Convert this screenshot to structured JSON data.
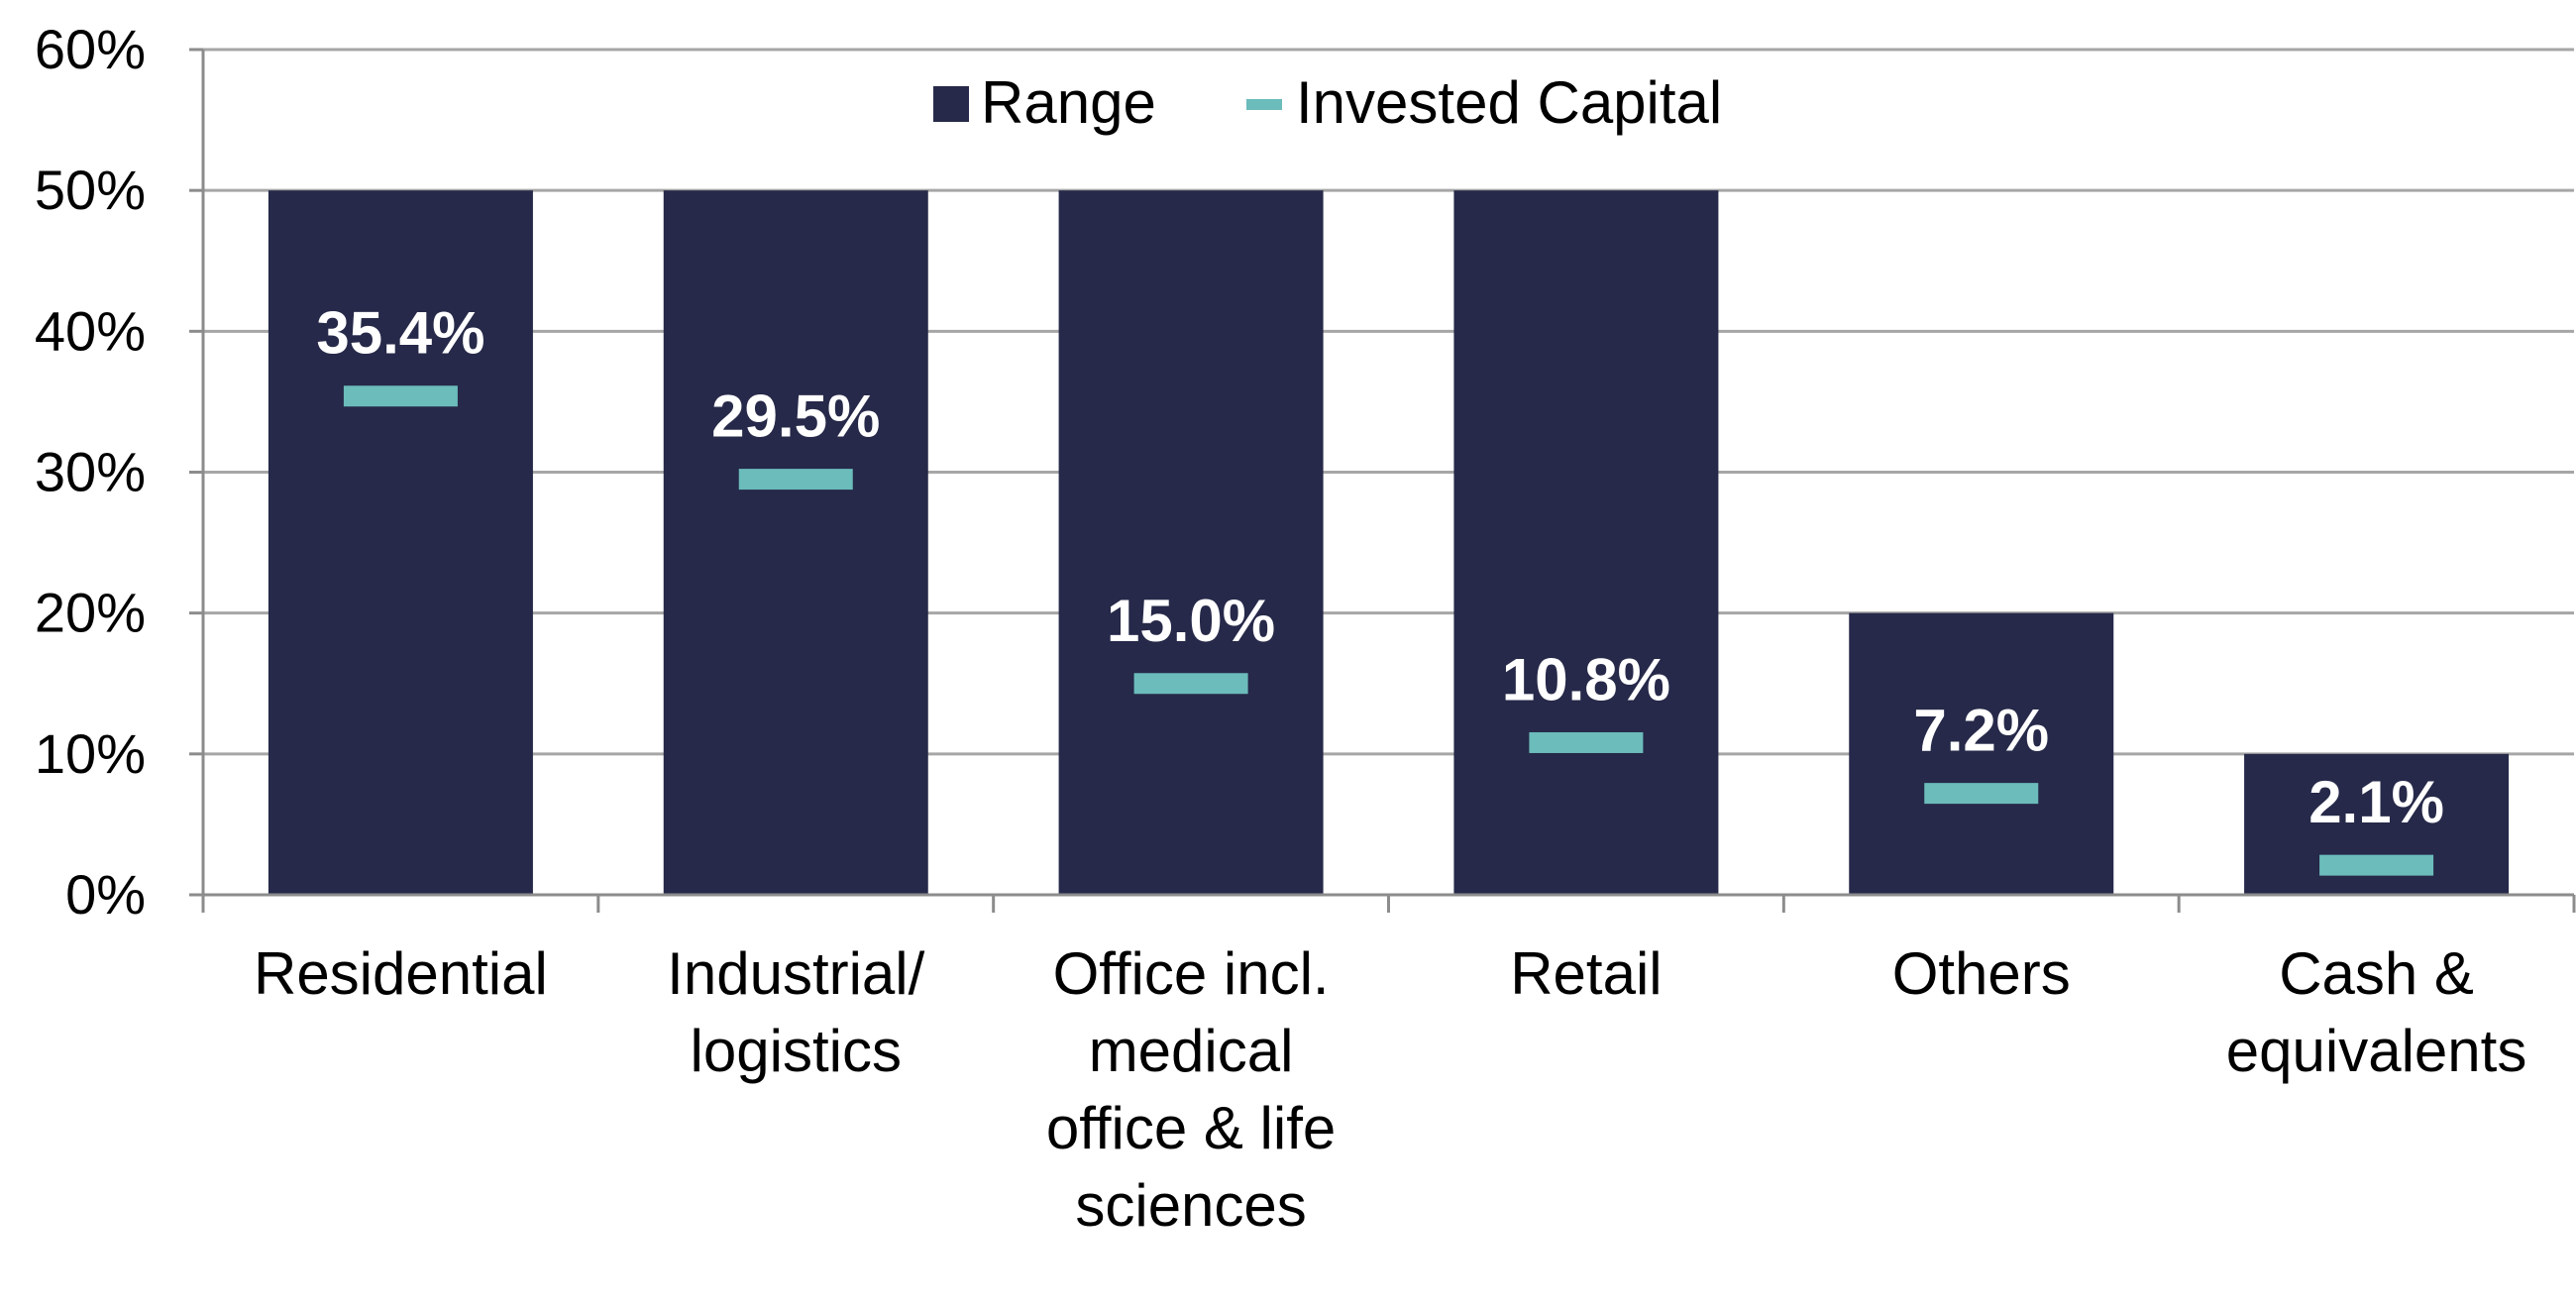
{
  "chart_data": {
    "type": "bar",
    "categories": [
      [
        "Residential"
      ],
      [
        "Industrial/",
        "logistics"
      ],
      [
        "Office incl.",
        "medical",
        "office & life",
        "sciences"
      ],
      [
        "Retail"
      ],
      [
        "Others"
      ],
      [
        "Cash &",
        "equivalents"
      ]
    ],
    "series": [
      {
        "name": "Range",
        "values": [
          50,
          50,
          50,
          50,
          20,
          10
        ]
      },
      {
        "name": "Invested Capital",
        "values": [
          35.4,
          29.5,
          15.0,
          10.8,
          7.2,
          2.1
        ]
      }
    ],
    "data_labels": [
      "35.4%",
      "29.5%",
      "15.0%",
      "10.8%",
      "7.2%",
      "2.1%"
    ],
    "y_ticks": [
      0,
      10,
      20,
      30,
      40,
      50,
      60
    ],
    "y_tick_suffix": "%",
    "ylim": [
      0,
      60
    ],
    "grid": true,
    "legend_position": "top-center",
    "colors": {
      "range": "#262949",
      "invested": "#6bbcbb",
      "grid": "#a6a6a6",
      "axis": "#8c8c8c",
      "text": "#000000",
      "label_inside": "#ffffff",
      "label_outside": "#262949"
    }
  }
}
